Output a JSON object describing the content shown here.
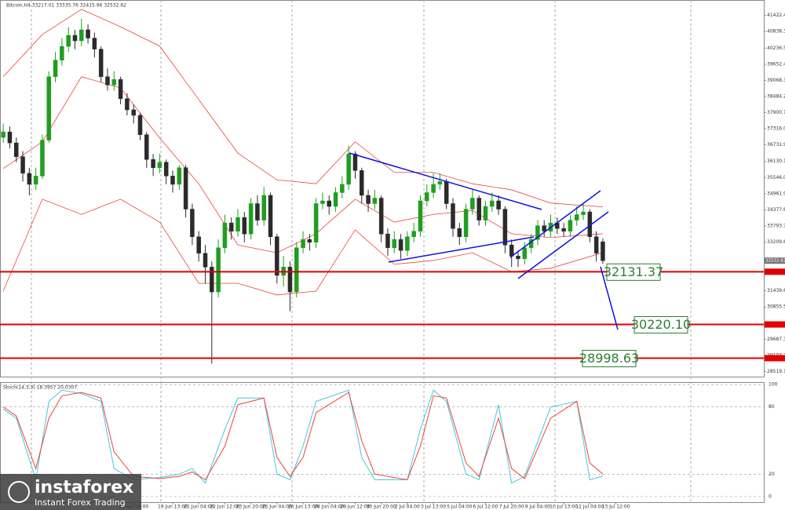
{
  "header": {
    "title": "Bitcoin,H4 33217.01 33335.76 32415.96 32532.62",
    "indicator": "Stoch(14,3,3) 18.3957 20.0307"
  },
  "logo": {
    "brand": "instaforex",
    "tagline": "Instant Forex Trading"
  },
  "chart_data": [
    {
      "type": "candlestick",
      "up_color": "#1f9e1f",
      "down_color": "#2b2b2b",
      "xlim": [
        -0.5,
        116.7
      ],
      "xticks": [
        {
          "value": 20,
          "label": "18 Jun 20:00"
        },
        {
          "value": 26,
          "label": "19 Jun 13:00"
        },
        {
          "value": 30,
          "label": "21 Jun 04:00"
        },
        {
          "value": 34,
          "label": "22 Jun 12:00"
        },
        {
          "value": 38,
          "label": "23 Jun 20:00"
        },
        {
          "value": 42,
          "label": "25 Jun 04:00"
        },
        {
          "value": 46,
          "label": "26 Jun 13:00"
        },
        {
          "value": 50,
          "label": "28 Jun 04:00"
        },
        {
          "value": 54,
          "label": "29 Jun 12:00"
        },
        {
          "value": 58,
          "label": "30 Jun 20:00"
        },
        {
          "value": 62,
          "label": "2 Jul 04:00"
        },
        {
          "value": 66,
          "label": "3 Jul 13:00"
        },
        {
          "value": 70,
          "label": "5 Jul 04:00"
        },
        {
          "value": 74,
          "label": "6 Jul 12:00"
        },
        {
          "value": 78,
          "label": "7 Jul 20:00"
        },
        {
          "value": 82,
          "label": "9 Jul 04:00"
        },
        {
          "value": 86,
          "label": "10 Jul 13:00"
        },
        {
          "value": 90,
          "label": "12 Jul 04:00"
        },
        {
          "value": 94,
          "label": "13 Jul 12:00"
        }
      ],
      "ylim": [
        28330,
        41980
      ],
      "yticks": [
        {
          "value": 41422.4,
          "label": "41422.40"
        },
        {
          "value": 40838.3,
          "label": "40838.30"
        },
        {
          "value": 40236.5,
          "label": "40236.50"
        },
        {
          "value": 39652.4,
          "label": "39652.40"
        },
        {
          "value": 39068.3,
          "label": "39068.30"
        },
        {
          "value": 38484.2,
          "label": "38484.20"
        },
        {
          "value": 37900.1,
          "label": "37900.10"
        },
        {
          "value": 37316,
          "label": "37316.00"
        },
        {
          "value": 36731.9,
          "label": "36731.90"
        },
        {
          "value": 36130.1,
          "label": "36130.10"
        },
        {
          "value": 35546,
          "label": "35546.00"
        },
        {
          "value": 34961.9,
          "label": "34961.90"
        },
        {
          "value": 34377.8,
          "label": "34377.80"
        },
        {
          "value": 33793.7,
          "label": "33793.70"
        },
        {
          "value": 33209.6,
          "label": "33209.60"
        },
        {
          "value": 31439.6,
          "label": "31439.60"
        },
        {
          "value": 30855.5,
          "label": "30855.50"
        },
        {
          "value": 29687.3,
          "label": "29687.30"
        },
        {
          "value": 29103.2,
          "label": "29103.20"
        },
        {
          "value": 28519.1,
          "label": "28519.10"
        }
      ],
      "open": [
        37000,
        37200,
        36800,
        36300,
        35700,
        35300,
        35600,
        36900,
        39200,
        39800,
        40300,
        40700,
        40500,
        40900,
        40600,
        40200,
        39200,
        38900,
        39100,
        38400,
        38000,
        37800,
        37100,
        36200,
        35900,
        36100,
        35600,
        35300,
        35900,
        34400,
        33400,
        32800,
        32300,
        31400,
        33000,
        33900,
        33600,
        34100,
        33500,
        34600,
        34000,
        34900,
        33400,
        32000,
        32300,
        31400,
        33000,
        33300,
        33200,
        34600,
        34700,
        34500,
        35000,
        35300,
        36400,
        35800,
        34900,
        34600,
        34800,
        33500,
        33000,
        33300,
        32900,
        33400,
        33600,
        34700,
        35000,
        35300,
        35400,
        34600,
        33700,
        33400,
        34400,
        34800,
        34000,
        34500,
        34700,
        34400,
        33100,
        32700,
        32600,
        33000,
        33300,
        33800,
        33600,
        33900,
        33700,
        33600,
        34000,
        34200,
        34300,
        33400,
        33217.01
      ],
      "high": [
        37500,
        37400,
        37000,
        36500,
        35900,
        35900,
        37100,
        39400,
        40100,
        40600,
        41000,
        40900,
        41300,
        41100,
        40800,
        40300,
        39500,
        39400,
        39200,
        38600,
        38200,
        37900,
        37200,
        36400,
        36400,
        36200,
        35800,
        36000,
        36000,
        34600,
        33600,
        33100,
        32500,
        33300,
        34200,
        34100,
        34400,
        34300,
        34800,
        34900,
        35200,
        35000,
        33500,
        32700,
        32500,
        33200,
        33600,
        33500,
        34800,
        35000,
        34900,
        35200,
        35600,
        36700,
        36500,
        35900,
        35100,
        35100,
        34900,
        33700,
        33600,
        33500,
        33600,
        33900,
        34900,
        35300,
        35700,
        35700,
        35500,
        34800,
        33900,
        34600,
        35100,
        34900,
        34700,
        35000,
        34900,
        34500,
        33300,
        32900,
        33200,
        33500,
        34000,
        34000,
        34200,
        34100,
        33900,
        34200,
        34500,
        34600,
        34400,
        33600,
        33335.76
      ],
      "low": [
        36800,
        36600,
        36100,
        35400,
        34900,
        35100,
        35500,
        36800,
        39000,
        39600,
        40100,
        40200,
        40300,
        40400,
        39900,
        39000,
        38700,
        38700,
        38200,
        37800,
        37500,
        36900,
        35900,
        35600,
        35700,
        35300,
        35000,
        35100,
        34100,
        33100,
        32500,
        31700,
        28800,
        31200,
        32800,
        33300,
        33400,
        33200,
        33300,
        33800,
        33800,
        33100,
        31700,
        31600,
        30700,
        31200,
        32800,
        32900,
        33000,
        34400,
        34200,
        34300,
        34800,
        35100,
        35500,
        34600,
        34300,
        34400,
        33200,
        32700,
        32800,
        32600,
        32700,
        33200,
        33400,
        34500,
        34800,
        35100,
        34400,
        33400,
        33100,
        33200,
        34200,
        33800,
        33800,
        34300,
        34200,
        32800,
        32300,
        32300,
        32400,
        32800,
        33100,
        33400,
        33400,
        33500,
        33400,
        33400,
        33800,
        34000,
        33200,
        32500,
        32415.96
      ],
      "close": [
        37200,
        36800,
        36300,
        35700,
        35300,
        35600,
        36900,
        39200,
        39800,
        40300,
        40700,
        40500,
        40900,
        40600,
        40200,
        39200,
        38900,
        39100,
        38400,
        38000,
        37800,
        37100,
        36200,
        35900,
        36100,
        35600,
        35300,
        35900,
        34400,
        33400,
        32800,
        32300,
        31400,
        33000,
        33900,
        33600,
        34100,
        33500,
        34600,
        34000,
        34900,
        33400,
        32000,
        32300,
        31400,
        33000,
        33300,
        33200,
        34600,
        34700,
        34500,
        35000,
        35300,
        36400,
        35800,
        34900,
        34600,
        34800,
        33500,
        33000,
        33300,
        32900,
        33400,
        33600,
        34700,
        35000,
        35300,
        35400,
        34600,
        33700,
        33400,
        34400,
        34800,
        34000,
        34500,
        34700,
        34400,
        33100,
        32700,
        32600,
        33000,
        33300,
        33800,
        33600,
        33900,
        33700,
        33600,
        34000,
        34200,
        34300,
        33400,
        32800,
        32532.62
      ],
      "bands": {
        "color": "#e8453c",
        "x": [
          0,
          6,
          12,
          18,
          24,
          30,
          36,
          42,
          48,
          54,
          60,
          66,
          72,
          78,
          84,
          92
        ],
        "upper": [
          39200,
          40730,
          41640,
          41010,
          40310,
          38370,
          36430,
          35460,
          35320,
          36840,
          35730,
          35730,
          35320,
          35100,
          34620,
          34480
        ],
        "middle": [
          35870,
          36840,
          39200,
          38790,
          36980,
          35320,
          33100,
          32820,
          33510,
          34760,
          33930,
          34210,
          34350,
          33510,
          33370,
          33510
        ],
        "lower": [
          31430,
          34760,
          34210,
          34760,
          33930,
          31710,
          31710,
          31290,
          31430,
          33650,
          32400,
          32540,
          32820,
          32130,
          32260,
          32820
        ]
      },
      "level_color": "#e00000",
      "levels": [
        {
          "value": 32131.37,
          "label": "32131.37"
        },
        {
          "value": 30220.1,
          "label": "30220.10"
        },
        {
          "value": 28998.63,
          "label": "28998.63"
        }
      ]
    },
    {
      "type": "line",
      "x": [
        0,
        2,
        5,
        7,
        9,
        12,
        15,
        17,
        20,
        24,
        27,
        29,
        31,
        34,
        36,
        40,
        42,
        44,
        46,
        48,
        53,
        55,
        57,
        62,
        64,
        66,
        68,
        71,
        73,
        76,
        78,
        80,
        84,
        88,
        90,
        92
      ],
      "series": [
        {
          "color": "#45c8dc",
          "values": [
            78,
            70,
            15,
            85,
            95,
            92,
            85,
            25,
            15,
            17,
            20,
            25,
            12,
            60,
            88,
            88,
            20,
            15,
            45,
            85,
            95,
            35,
            15,
            15,
            60,
            95,
            85,
            20,
            15,
            82,
            12,
            18,
            80,
            85,
            15,
            18.3957
          ]
        },
        {
          "color": "#e8453c",
          "values": [
            80,
            72,
            25,
            70,
            90,
            93,
            88,
            40,
            18,
            16,
            18,
            22,
            15,
            45,
            82,
            88,
            35,
            18,
            35,
            75,
            93,
            50,
            20,
            15,
            45,
            90,
            88,
            30,
            18,
            70,
            25,
            16,
            70,
            85,
            30,
            20.0307
          ]
        }
      ],
      "ylim": [
        -5,
        101.5
      ],
      "yticks": [
        0,
        20,
        80,
        100
      ],
      "grid": "dashed"
    }
  ]
}
